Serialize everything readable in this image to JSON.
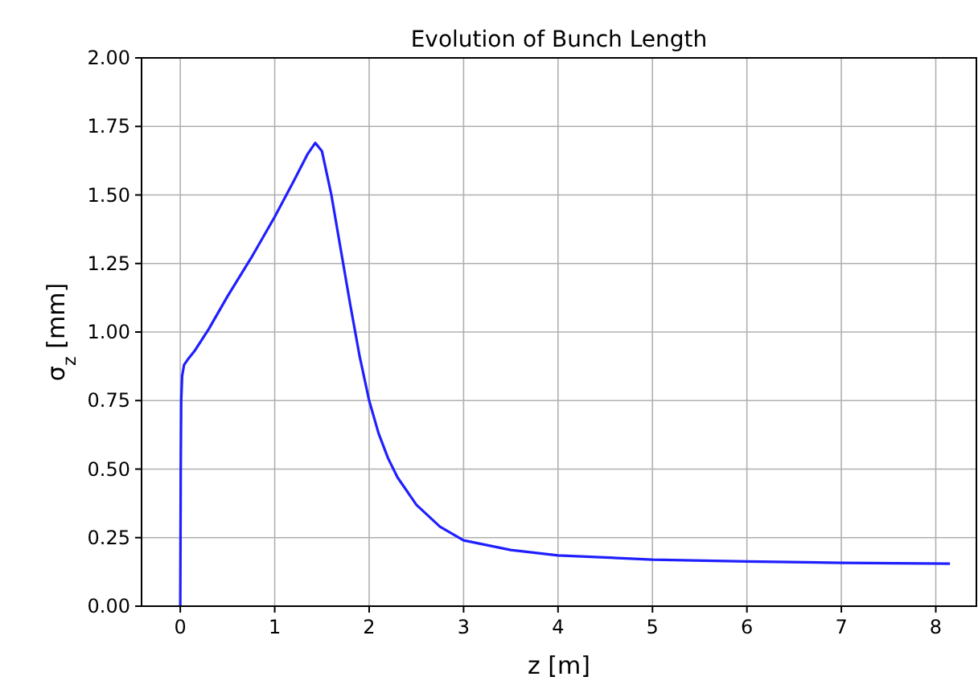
{
  "chart_data": {
    "type": "line",
    "title": "Evolution of Bunch Length",
    "xlabel": "z [m]",
    "ylabel": "σ$_{z}$ [mm]",
    "x": [
      0,
      0.005,
      0.01,
      0.02,
      0.04,
      0.08,
      0.15,
      0.3,
      0.5,
      0.75,
      1,
      1.2,
      1.35,
      1.43,
      1.5,
      1.6,
      1.7,
      1.8,
      1.9,
      2,
      2.1,
      2.2,
      2.3,
      2.5,
      2.75,
      3,
      3.5,
      4,
      5,
      6,
      7,
      8.15
    ],
    "series": [
      {
        "color": "#1f1fff",
        "values": [
          0,
          0.5,
          0.75,
          0.84,
          0.88,
          0.9,
          0.93,
          1.01,
          1.13,
          1.27,
          1.42,
          1.55,
          1.65,
          1.69,
          1.66,
          1.5,
          1.3,
          1.1,
          0.91,
          0.75,
          0.63,
          0.54,
          0.47,
          0.37,
          0.29,
          0.24,
          0.205,
          0.185,
          0.17,
          0.163,
          0.158,
          0.155
        ]
      }
    ],
    "xlim": [
      -0.41,
      8.43
    ],
    "ylim": [
      0,
      2
    ],
    "xticks": [
      0,
      1,
      2,
      3,
      4,
      5,
      6,
      7,
      8
    ],
    "yticks": [
      {
        "value": 0,
        "label": "0.00"
      },
      {
        "value": 0.25,
        "label": "0.25"
      },
      {
        "value": 0.5,
        "label": "0.50"
      },
      {
        "value": 0.75,
        "label": "0.75"
      },
      {
        "value": 1,
        "label": "1.00"
      },
      {
        "value": 1.25,
        "label": "1.25"
      },
      {
        "value": 1.5,
        "label": "1.50"
      },
      {
        "value": 1.75,
        "label": "1.75"
      },
      {
        "value": 2,
        "label": "2.00"
      }
    ],
    "grid": true,
    "line_style": "solid",
    "marker": "none"
  }
}
